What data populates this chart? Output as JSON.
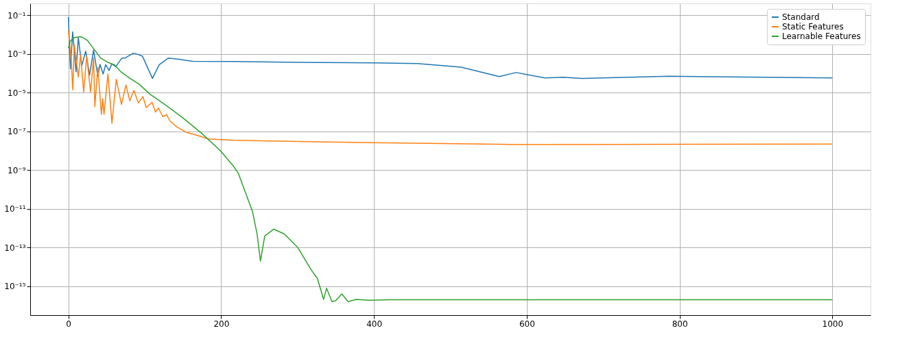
{
  "chart_data": {
    "type": "line",
    "log": "y",
    "grid": true,
    "legend": "top right",
    "line_style": "solid",
    "xlim": [
      -50,
      1050
    ],
    "ylim": [
      3.2e-17,
      0.41
    ],
    "xticks": [
      0,
      200,
      400,
      600,
      800,
      1000
    ],
    "yticks": [
      {
        "value": 0.1,
        "label": "10⁻¹"
      },
      {
        "value": 0.001,
        "label": "10⁻³"
      },
      {
        "value": 1e-05,
        "label": "10⁻⁵"
      },
      {
        "value": 1e-07,
        "label": "10⁻⁷"
      },
      {
        "value": 1e-09,
        "label": "10⁻⁹"
      },
      {
        "value": 1e-11,
        "label": "10⁻¹¹"
      },
      {
        "value": 1e-13,
        "label": "10⁻¹³"
      },
      {
        "value": 1e-15,
        "label": "10⁻¹⁵"
      }
    ],
    "series": [
      {
        "name": "Standard",
        "color": "#1f77b4",
        "x": [
          0,
          2.7,
          5.6,
          10,
          13,
          17.5,
          22.7,
          27.7,
          33,
          38.5,
          41.4,
          45.5,
          48.8,
          53.2,
          56.8,
          62,
          70,
          74.5,
          78,
          85,
          92,
          97,
          110,
          119,
          131,
          143,
          163,
          217,
          300,
          400,
          457,
          514,
          564,
          586,
          624,
          648,
          672,
          786,
          1000
        ],
        "values": [
          0.081,
          0.00017,
          0.014,
          0.00012,
          0.0069,
          0.00025,
          0.0014,
          8.1e-05,
          0.0016,
          7.1e-05,
          0.00029,
          9.3e-05,
          0.00028,
          0.00014,
          0.00031,
          0.00022,
          0.00062,
          0.00062,
          0.00076,
          0.0011,
          0.00093,
          0.00076,
          5.5e-05,
          0.00028,
          0.00062,
          0.00054,
          0.00042,
          0.00041,
          0.00037,
          0.00035,
          0.00032,
          0.00021,
          6.8e-05,
          0.00011,
          5.8e-05,
          6.3e-05,
          5.5e-05,
          7.1e-05,
          5.8e-05
        ]
      },
      {
        "name": "Static Features",
        "color": "#ff7f0e",
        "x": [
          0,
          3.6,
          5.8,
          7.7,
          13,
          16,
          20,
          24,
          29,
          33,
          34.6,
          38.5,
          43.2,
          45,
          46.6,
          51.8,
          57,
          62.7,
          69.5,
          75.4,
          80.4,
          85.7,
          91.6,
          97.5,
          102,
          109.5,
          114,
          118,
          123.6,
          128.6,
          133,
          142,
          154,
          165.5,
          183,
          216,
          300,
          400,
          600,
          1000
        ],
        "values": [
          0.016,
          0.00062,
          1.4e-05,
          0.0031,
          6.5e-05,
          0.00091,
          1.1e-05,
          0.00079,
          1.1e-05,
          0.00062,
          1.9e-06,
          0.00021,
          7.6e-07,
          4.9e-06,
          7.6e-07,
          9.3e-05,
          2.6e-07,
          4.9e-05,
          2.5e-06,
          2.5e-05,
          3.8e-06,
          1.3e-05,
          3e-06,
          6.3e-06,
          1.7e-06,
          3.2e-06,
          1e-06,
          1.6e-06,
          5.8e-07,
          7.4e-07,
          3.4e-07,
          1.7e-07,
          9.1e-08,
          6.8e-08,
          4.1e-08,
          3.5e-08,
          3e-08,
          2.6e-08,
          2.1e-08,
          2.2e-08
        ]
      },
      {
        "name": "Learnable Features",
        "color": "#2ca02c",
        "x": [
          0,
          2.5,
          6.9,
          16.3,
          24.6,
          33.4,
          42.3,
          51,
          60,
          68.8,
          80.6,
          92.4,
          107,
          128,
          151.7,
          175,
          199,
          216.6,
          222.4,
          232.2,
          241,
          247,
          251.4,
          257,
          269,
          282.6,
          300.3,
          318,
          326,
          334,
          338,
          345,
          350,
          358,
          366,
          377,
          394,
          420,
          1000
        ],
        "values": [
          0.002,
          0.0046,
          0.0069,
          0.0079,
          0.0052,
          0.0018,
          0.00062,
          0.00038,
          0.00028,
          0.00012,
          5.5e-05,
          2.8e-05,
          8.3e-06,
          2.2e-06,
          4.4e-07,
          7.6e-08,
          1e-08,
          1.5e-09,
          6.9e-10,
          6.3e-11,
          7.2e-12,
          5e-13,
          2e-14,
          4e-13,
          8.9e-13,
          5e-13,
          1e-13,
          6.9e-15,
          2.5e-15,
          2.1e-16,
          7.9e-16,
          1.6e-16,
          1.8e-16,
          4e-16,
          1.6e-16,
          2.1e-16,
          1.9e-16,
          2e-16,
          2e-16
        ]
      }
    ]
  }
}
